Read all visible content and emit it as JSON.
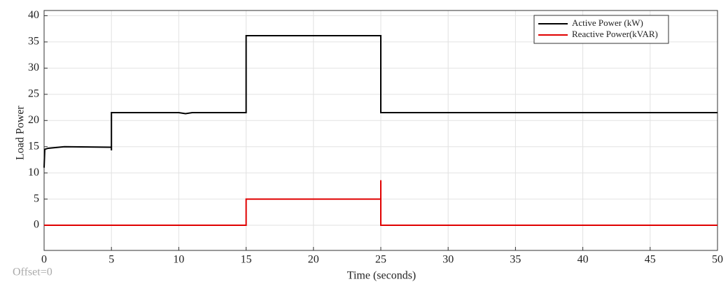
{
  "chart_data": {
    "type": "line",
    "x_label": "Time (seconds)",
    "y_label": "Load Power",
    "annotation": "Offset=0",
    "xlim": [
      0,
      50
    ],
    "xticks": [
      0,
      5,
      10,
      15,
      20,
      25,
      30,
      35,
      40,
      45,
      50
    ],
    "ylim": [
      -4.8,
      41
    ],
    "yticks": [
      0,
      5,
      10,
      15,
      20,
      25,
      30,
      35,
      40
    ],
    "grid": true,
    "legend_position": "upper-right",
    "series": [
      {
        "name": "Active Power (kW)",
        "color": "#000000",
        "x": [
          0,
          0.05,
          0.3,
          1.5,
          5,
          5,
          5,
          10,
          10.5,
          11,
          15,
          15,
          25,
          25,
          50
        ],
        "values": [
          11,
          14.5,
          14.7,
          15,
          14.9,
          14.3,
          21.5,
          21.5,
          21.3,
          21.5,
          21.5,
          36.2,
          36.2,
          21.5,
          21.5
        ]
      },
      {
        "name": "Reactive Power(kVAR)",
        "color": "#e00000",
        "x": [
          0,
          15,
          15,
          25,
          25,
          25,
          50
        ],
        "values": [
          0,
          0,
          5,
          5,
          8.6,
          0,
          0
        ]
      }
    ]
  }
}
